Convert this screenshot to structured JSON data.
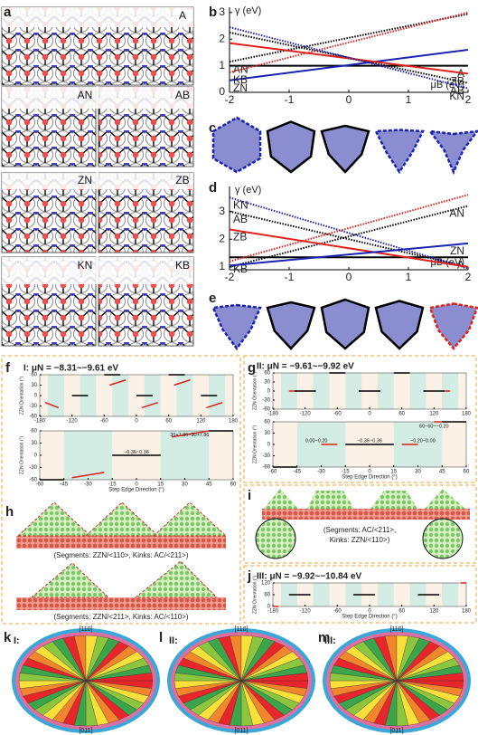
{
  "figure": {
    "panel_labels": [
      "a",
      "b",
      "c",
      "d",
      "e",
      "f",
      "g",
      "h",
      "i",
      "j",
      "k",
      "l",
      "m"
    ],
    "structure_labels": [
      "A",
      "AN",
      "AB",
      "ZN",
      "ZB",
      "KN",
      "KB"
    ],
    "captions": [
      "(Segments: ZZN/<110>, Kinks: AC/<211>)",
      "(Segments: ZZN/<211>, Kinks: AC/<110>)",
      "(Segments: AC/<211>,",
      "Kinks: ZZN/<110>)"
    ],
    "wheels": [
      {
        "label": "I:",
        "top": "[110]",
        "bottom": "[011]"
      },
      {
        "label": "II:",
        "top": "[110]",
        "bottom": "[011]"
      },
      {
        "label": "III:",
        "top": "[110]",
        "bottom": "[011]"
      }
    ]
  },
  "chart_data": [
    {
      "type": "line",
      "x": [
        -2,
        2
      ],
      "xlim": [
        -2,
        2
      ],
      "xticks": [
        -2,
        -1,
        0,
        1,
        2
      ],
      "ylim": [
        0,
        3.2
      ],
      "yticks": [
        0,
        1,
        2,
        3
      ],
      "xlabel": "μB (eV)",
      "ylabel": "γ (eV)",
      "series": [
        {
          "name": "A",
          "color": "#000000",
          "style": "solid",
          "label_at": "end",
          "values": [
            1.0,
            1.0
          ]
        },
        {
          "name": "AN",
          "color": "#000000",
          "style": "dotted",
          "label_at": "start",
          "values": [
            1.15,
            2.95
          ]
        },
        {
          "name": "AB",
          "color": "#000000",
          "style": "dotted",
          "label_at": "end",
          "values": [
            2.25,
            0.35
          ]
        },
        {
          "name": "ZN",
          "color": "#1a22b0",
          "style": "solid",
          "label_at": "start",
          "values": [
            0.45,
            1.6
          ]
        },
        {
          "name": "ZB",
          "color": "#e0201b",
          "style": "solid",
          "label_at": "end",
          "values": [
            1.85,
            0.7
          ]
        },
        {
          "name": "KB",
          "color": "#e0201b",
          "style": "dotted",
          "label_at": "start",
          "values": [
            0.75,
            3.0
          ]
        },
        {
          "name": "KN",
          "color": "#1a22b0",
          "style": "dotted",
          "label_at": "end",
          "values": [
            2.45,
            0.15
          ]
        }
      ]
    },
    {
      "type": "line",
      "x": [
        -2,
        2
      ],
      "xlim": [
        -2,
        2
      ],
      "xticks": [
        -2,
        -1,
        0,
        1,
        2
      ],
      "ylim": [
        0.9,
        3.9
      ],
      "yticks": [
        1,
        2,
        3
      ],
      "xlabel": "μB (eV)",
      "ylabel": "γ (eV)",
      "series": [
        {
          "name": "A",
          "color": "#000000",
          "style": "solid",
          "label_at": "end",
          "values": [
            1.35,
            1.35
          ]
        },
        {
          "name": "AN",
          "color": "#000000",
          "style": "dotted",
          "label_at": "end",
          "values": [
            1.0,
            3.2
          ]
        },
        {
          "name": "AB",
          "color": "#000000",
          "style": "dotted",
          "label_at": "start",
          "values": [
            3.0,
            1.0
          ]
        },
        {
          "name": "KN",
          "color": "#1a22b0",
          "style": "dotted",
          "label_at": "start",
          "values": [
            3.5,
            0.95
          ]
        },
        {
          "name": "ZB",
          "color": "#e0201b",
          "style": "solid",
          "label_at": "start",
          "values": [
            2.35,
            1.0
          ]
        },
        {
          "name": "KB",
          "color": "#e0201b",
          "style": "dotted",
          "label_at": "start",
          "values": [
            1.2,
            3.6
          ]
        },
        {
          "name": "ZN",
          "color": "#1a22b0",
          "style": "solid",
          "label_at": "end",
          "values": [
            1.05,
            1.85
          ]
        }
      ]
    },
    {
      "type": "segments",
      "title": "I: μN = −8.31~−9.61 eV",
      "ylabel": "ZZN Orientation (°)",
      "xlim": [
        -180,
        180
      ],
      "xticks": [
        -180,
        -120,
        -60,
        0,
        60,
        120,
        180
      ],
      "ylim": [
        -60,
        60
      ],
      "yticks": [
        -60,
        -30,
        0,
        30,
        60
      ],
      "shaded_regions": [
        [
          -165,
          -135
        ],
        [
          -105,
          -75
        ],
        [
          -45,
          -15
        ],
        [
          15,
          45
        ],
        [
          75,
          105
        ],
        [
          135,
          165
        ]
      ],
      "segments": [
        {
          "color": "#e0201b",
          "x": [
            -170,
            -145
          ],
          "values": [
            -20,
            -35
          ]
        },
        {
          "color": "#000000",
          "x": [
            -120,
            -90
          ],
          "values": [
            0,
            0
          ]
        },
        {
          "color": "#000000",
          "x": [
            -60,
            -30
          ],
          "values": [
            60,
            60
          ]
        },
        {
          "color": "#e0201b",
          "x": [
            -50,
            -20
          ],
          "values": [
            30,
            45
          ]
        },
        {
          "color": "#000000",
          "x": [
            0,
            30
          ],
          "values": [
            0,
            0
          ]
        },
        {
          "color": "#e0201b",
          "x": [
            10,
            40
          ],
          "values": [
            -35,
            -20
          ]
        },
        {
          "color": "#000000",
          "x": [
            60,
            90
          ],
          "values": [
            60,
            60
          ]
        },
        {
          "color": "#e0201b",
          "x": [
            70,
            100
          ],
          "values": [
            30,
            45
          ]
        },
        {
          "color": "#000000",
          "x": [
            120,
            150
          ],
          "values": [
            0,
            0
          ]
        },
        {
          "color": "#e0201b",
          "x": [
            130,
            160
          ],
          "values": [
            -35,
            -20
          ]
        }
      ],
      "annotations": []
    },
    {
      "type": "segments",
      "xlabel": "Step Edge Direction (°)",
      "ylabel": "ZZN Orientation (°)",
      "xlim": [
        -60,
        60
      ],
      "xticks": [
        -60,
        -45,
        -30,
        -15,
        0,
        15,
        30,
        45,
        60
      ],
      "ylim": [
        -60,
        60
      ],
      "yticks": [
        -60,
        -30,
        0,
        30,
        60
      ],
      "shaded_regions": [
        [
          -45,
          -15
        ],
        [
          15,
          45
        ]
      ],
      "segments": [
        {
          "color": "#000000",
          "x": [
            -60,
            -45
          ],
          "values": [
            -60,
            -60
          ]
        },
        {
          "color": "#e0201b",
          "x": [
            -40,
            -20
          ],
          "values": [
            -55,
            -42
          ]
        },
        {
          "color": "#000000",
          "x": [
            -15,
            15
          ],
          "values": [
            0,
            0
          ]
        },
        {
          "color": "#e0201b",
          "x": [
            22,
            45
          ],
          "values": [
            45,
            60
          ]
        },
        {
          "color": "#000000",
          "x": [
            45,
            60
          ],
          "values": [
            60,
            60
          ]
        }
      ],
      "annotations": [
        {
          "text": "−0.36~0.36",
          "x": 0,
          "y": 8
        },
        {
          "text": "30+7.86~30+7.86",
          "x": 33,
          "y": 50
        }
      ]
    },
    {
      "type": "segments",
      "title": "II: μN = −9.61~−9.92 eV",
      "ylabel": "ZZN Orientation (°)",
      "xlim": [
        -180,
        180
      ],
      "xticks": [
        -180,
        -120,
        -60,
        0,
        60,
        120,
        180
      ],
      "ylim": [
        -60,
        60
      ],
      "yticks": [
        -60,
        -30,
        0,
        30,
        60
      ],
      "shaded_regions": [
        [
          -165,
          -135
        ],
        [
          -105,
          -75
        ],
        [
          -45,
          -15
        ],
        [
          15,
          45
        ],
        [
          75,
          105
        ],
        [
          135,
          165
        ]
      ],
      "segments": [
        {
          "color": "#e0201b",
          "x": [
            -150,
            -140
          ],
          "values": [
            0,
            0
          ]
        },
        {
          "color": "#000000",
          "x": [
            -140,
            -100
          ],
          "values": [
            0,
            0
          ]
        },
        {
          "color": "#000000",
          "x": [
            -75,
            -45
          ],
          "values": [
            60,
            60
          ]
        },
        {
          "color": "#000000",
          "x": [
            -20,
            20
          ],
          "values": [
            0,
            0
          ]
        },
        {
          "color": "#000000",
          "x": [
            45,
            75
          ],
          "values": [
            60,
            60
          ]
        },
        {
          "color": "#000000",
          "x": [
            100,
            140
          ],
          "values": [
            0,
            0
          ]
        },
        {
          "color": "#e0201b",
          "x": [
            140,
            150
          ],
          "values": [
            0,
            0
          ]
        }
      ],
      "annotations": []
    },
    {
      "type": "segments",
      "xlabel": "Step Edge Direction (°)",
      "ylabel": "ZZN Orientation (°)",
      "xlim": [
        -60,
        60
      ],
      "xticks": [
        -60,
        -45,
        -30,
        -15,
        0,
        15,
        30,
        45,
        60
      ],
      "ylim": [
        -60,
        60
      ],
      "yticks": [
        -60,
        -30,
        0,
        30,
        60
      ],
      "shaded_regions": [
        [
          -45,
          -15
        ],
        [
          15,
          45
        ]
      ],
      "segments": [
        {
          "color": "#000000",
          "x": [
            -60,
            -45
          ],
          "values": [
            -60,
            -60
          ]
        },
        {
          "color": "#e0201b",
          "x": [
            -30,
            -20
          ],
          "values": [
            0,
            0
          ]
        },
        {
          "color": "#000000",
          "x": [
            -15,
            15
          ],
          "values": [
            0,
            0
          ]
        },
        {
          "color": "#e0201b",
          "x": [
            20,
            30
          ],
          "values": [
            0,
            0
          ]
        },
        {
          "color": "#e0201b",
          "x": [
            40,
            45
          ],
          "values": [
            60,
            60
          ]
        },
        {
          "color": "#000000",
          "x": [
            45,
            60
          ],
          "values": [
            60,
            60
          ]
        }
      ],
      "annotations": [
        {
          "text": "0.00~0.20",
          "x": -33,
          "y": 10
        },
        {
          "text": "−0.36~0.36",
          "x": 0,
          "y": 10
        },
        {
          "text": "−0.20~0.00",
          "x": 33,
          "y": 10
        },
        {
          "text": "60−60~−0.20",
          "x": 40,
          "y": 48
        }
      ]
    },
    {
      "type": "segments",
      "title": "III: μN = −9.92~−10.84 eV",
      "xlabel": "Step Edge Direction (°)",
      "ylabel": "ZZN Orientation (°)",
      "xlim": [
        -180,
        180
      ],
      "xticks": [
        -180,
        -120,
        -60,
        0,
        60,
        120,
        180
      ],
      "ylim": [
        0,
        120
      ],
      "yticks": [
        0,
        60,
        120
      ],
      "shaded_regions": [
        [
          -165,
          -135
        ],
        [
          -105,
          -75
        ],
        [
          -45,
          -15
        ],
        [
          15,
          45
        ],
        [
          75,
          105
        ],
        [
          135,
          165
        ]
      ],
      "segments": [
        {
          "color": "#e0201b",
          "x": [
            -180,
            -170
          ],
          "values": [
            0,
            0
          ]
        },
        {
          "color": "#000000",
          "x": [
            -150,
            -110
          ],
          "values": [
            60,
            60
          ]
        },
        {
          "color": "#000000",
          "x": [
            -30,
            10
          ],
          "values": [
            60,
            60
          ]
        },
        {
          "color": "#000000",
          "x": [
            90,
            130
          ],
          "values": [
            60,
            60
          ]
        },
        {
          "color": "#e0201b",
          "x": [
            170,
            180
          ],
          "values": [
            120,
            120
          ]
        }
      ],
      "annotations": []
    }
  ]
}
